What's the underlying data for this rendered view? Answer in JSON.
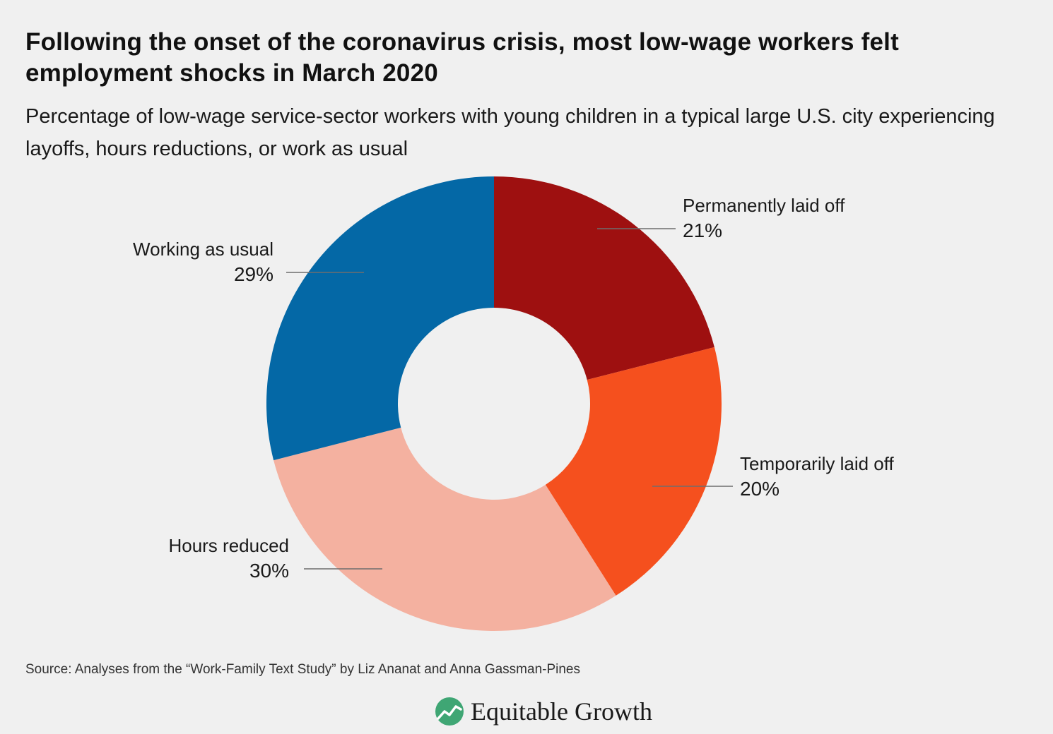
{
  "header": {
    "title": "Following the onset of the coronavirus crisis, most low-wage workers felt employment shocks in March 2020",
    "subtitle": "Percentage of low-wage service-sector workers with young children in a typical large U.S. city experiencing layoffs, hours reductions, or work as usual"
  },
  "chart_data": {
    "type": "pie",
    "donut": true,
    "slices": [
      {
        "name": "Permanently laid off",
        "value": 21,
        "label": "21%",
        "color": "#9e1010"
      },
      {
        "name": "Temporarily laid off",
        "value": 20,
        "label": "20%",
        "color": "#f5501e"
      },
      {
        "name": "Hours reduced",
        "value": 30,
        "label": "30%",
        "color": "#f4b1a0"
      },
      {
        "name": "Working as usual",
        "value": 29,
        "label": "29%",
        "color": "#0468a6"
      }
    ],
    "start": "12 o'clock",
    "direction": "clockwise"
  },
  "footer": {
    "source": "Source: Analyses from the “Work-Family Text Study” by Liz Ananat and Anna Gassman-Pines",
    "logo_text": "Equitable Growth",
    "logo_color": "#3fa674"
  }
}
